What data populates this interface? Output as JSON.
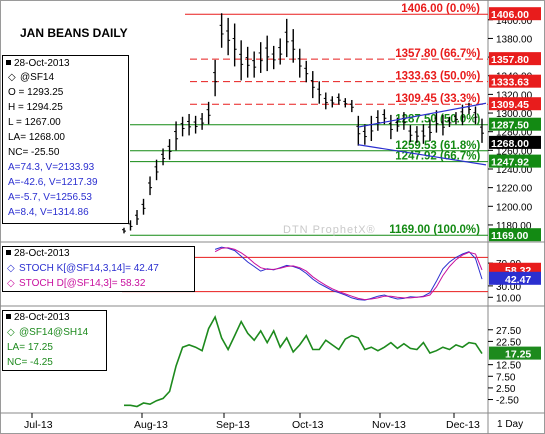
{
  "chart_data": {
    "type": "line",
    "title": "JAN BEANS DAILY",
    "watermark": "DTN ProphetX®",
    "time_axis": {
      "labels": [
        "Jul-13",
        "Aug-13",
        "Sep-13",
        "Oct-13",
        "Nov-13",
        "Dec-13"
      ],
      "corner_label": "1 Day"
    },
    "price_panel": {
      "ylim": [
        1166,
        1418
      ],
      "tick_labels": [
        "1400.00",
        "1380.00",
        "1360.00",
        "1340.00",
        "1320.00",
        "1300.00",
        "1280.00",
        "1260.00",
        "1240.00",
        "1220.00",
        "1200.00",
        "1180.00"
      ],
      "series": {
        "type": "ohlc",
        "bars": [
          [
            1177,
            1171
          ],
          [
            1185,
            1174
          ],
          [
            1196,
            1180
          ],
          [
            1208,
            1191
          ],
          [
            1232,
            1212
          ],
          [
            1250,
            1228
          ],
          [
            1262,
            1244
          ],
          [
            1272,
            1250
          ],
          [
            1291,
            1260
          ],
          [
            1296,
            1275
          ],
          [
            1299,
            1276
          ],
          [
            1297,
            1278
          ],
          [
            1300,
            1282
          ],
          [
            1312,
            1288
          ],
          [
            1357,
            1318
          ],
          [
            1407,
            1370
          ],
          [
            1402,
            1362
          ],
          [
            1396,
            1350
          ],
          [
            1378,
            1335
          ],
          [
            1371,
            1338
          ],
          [
            1366,
            1338
          ],
          [
            1376,
            1343
          ],
          [
            1383,
            1345
          ],
          [
            1372,
            1347
          ],
          [
            1380,
            1352
          ],
          [
            1401,
            1360
          ],
          [
            1390,
            1354
          ],
          [
            1369,
            1338
          ],
          [
            1356,
            1333
          ],
          [
            1345,
            1316
          ],
          [
            1334,
            1310
          ],
          [
            1322,
            1304
          ],
          [
            1318,
            1306
          ],
          [
            1321,
            1309
          ],
          [
            1316,
            1306
          ],
          [
            1314,
            1301
          ],
          [
            1297,
            1265
          ],
          [
            1288,
            1266
          ],
          [
            1297,
            1270
          ],
          [
            1303,
            1281
          ],
          [
            1304,
            1288
          ],
          [
            1298,
            1272
          ],
          [
            1295,
            1280
          ],
          [
            1301,
            1282
          ],
          [
            1287,
            1269
          ],
          [
            1286,
            1268
          ],
          [
            1288,
            1267
          ],
          [
            1293,
            1270
          ],
          [
            1303,
            1279
          ],
          [
            1298,
            1276
          ],
          [
            1296,
            1285
          ],
          [
            1301,
            1288
          ],
          [
            1309,
            1287
          ],
          [
            1311,
            1299
          ],
          [
            1307,
            1288
          ],
          [
            1294,
            1268
          ]
        ]
      },
      "levels": [
        {
          "label": "1406.00 (0.0%)",
          "value": 1406.0,
          "axis_tag": "1406.00",
          "color": "#e81c1c",
          "style": "solid"
        },
        {
          "label": "1357.80 (66.7%)",
          "value": 1357.8,
          "axis_tag": "1357.80",
          "color": "#e81c1c",
          "style": "dashed"
        },
        {
          "label": "1333.63 (50.0%)",
          "value": 1333.63,
          "axis_tag": "1333.63",
          "color": "#e81c1c",
          "style": "dashed"
        },
        {
          "label": "1309.45 (33.3%)",
          "value": 1309.45,
          "axis_tag": "1309.45",
          "color": "#e81c1c",
          "style": "dashed"
        },
        {
          "label": "1287.50 (50.0%)",
          "value": 1287.5,
          "axis_tag": "1287.50",
          "color": "#138a13",
          "style": "solid"
        },
        {
          "label": "1259.53 (61.8%)",
          "value": 1259.53,
          "axis_tag": "",
          "color": "#138a13",
          "style": "solid"
        },
        {
          "label": "1247.92 (66.7%)",
          "value": 1247.92,
          "axis_tag": "1247.92",
          "color": "#138a13",
          "style": "solid"
        },
        {
          "label": "1169.00 (100.0%)",
          "value": 1169.0,
          "axis_tag": "1169.00",
          "color": "#138a13",
          "style": "solid"
        }
      ],
      "last_price_tag": "1268.00",
      "trendlines": [
        {
          "color": "#2b2fd0",
          "from": [
            36,
            1285
          ],
          "to": [
            56,
            1311
          ]
        },
        {
          "color": "#2b2fd0",
          "from": [
            36,
            1266
          ],
          "to": [
            56,
            1244
          ]
        }
      ],
      "legend": {
        "date": "28-Oct-2013",
        "symbol": "@SF14",
        "rows": [
          "O = 1293.25",
          "H = 1294.25",
          "L = 1267.00",
          "LA= 1268.00",
          "NC= -25.50"
        ],
        "blue_rows": [
          "A=74.3, V=2133.93",
          "A=-42.6, V=1217.39",
          "A=-5.7, V=1256.53",
          "A=8.4, V=1314.86"
        ]
      }
    },
    "stoch_panel": {
      "ylim": [
        0,
        100
      ],
      "tick_labels": [
        "70.00",
        "30.00",
        "10.00"
      ],
      "levels": [
        80,
        20
      ],
      "legend": {
        "date": "28-Oct-2013",
        "k_label": "STOCH K[@SF14,3,14]= 42.47",
        "d_label": "STOCH D[@SF14,3]= 58.32"
      },
      "k_tag": "42.47",
      "d_tag": "58.32",
      "series": [
        {
          "name": "STOCH K[@SF14,3,14]",
          "color": "#2b2fd0",
          "values": [
            null,
            null,
            null,
            null,
            null,
            null,
            null,
            null,
            null,
            null,
            null,
            null,
            null,
            null,
            94,
            98,
            96,
            92,
            82,
            72,
            64,
            56,
            60,
            58,
            62,
            66,
            64,
            60,
            52,
            42,
            34,
            28,
            22,
            18,
            14,
            9,
            6,
            5,
            8,
            12,
            14,
            10,
            7,
            8,
            11,
            10,
            12,
            18,
            38,
            60,
            72,
            80,
            86,
            90,
            78,
            42
          ]
        },
        {
          "name": "STOCH D[@SF14,3]",
          "color": "#c8109e",
          "values": [
            null,
            null,
            null,
            null,
            null,
            null,
            null,
            null,
            null,
            null,
            null,
            null,
            null,
            null,
            90,
            96,
            97,
            94,
            88,
            80,
            70,
            62,
            59,
            59,
            61,
            64,
            65,
            62,
            56,
            46,
            38,
            31,
            25,
            20,
            16,
            12,
            8,
            6,
            7,
            9,
            12,
            12,
            10,
            9,
            9,
            10,
            11,
            14,
            28,
            48,
            64,
            76,
            84,
            89,
            86,
            58
          ]
        }
      ]
    },
    "spread_panel": {
      "ylim": [
        -7,
        36
      ],
      "tick_labels": [
        "27.50",
        "22.50",
        "12.50",
        "7.50",
        "2.50",
        "-2.50"
      ],
      "legend": {
        "date": "28-Oct-2013",
        "symbol": "@SF14@SH14",
        "la": "LA= 17.25",
        "nc": "NC= -4.25"
      },
      "last_tag": "17.25",
      "series": [
        {
          "name": "@SF14@SH14",
          "color": "#1d8a1d",
          "values": [
            -5,
            -5,
            -5.5,
            -4,
            -4.5,
            -3,
            -2,
            1,
            12,
            20,
            21,
            20,
            18.5,
            28,
            33,
            24,
            19,
            25,
            31,
            26,
            23,
            27,
            22,
            27,
            20,
            24,
            18,
            21,
            25,
            19,
            19,
            23,
            21,
            19,
            23.5,
            25,
            24,
            19,
            20,
            18.5,
            20,
            22,
            19.5,
            21.5,
            19.5,
            19,
            22,
            17.5,
            18.5,
            20,
            19,
            21,
            20,
            22,
            21.5,
            17.25
          ]
        }
      ]
    }
  }
}
